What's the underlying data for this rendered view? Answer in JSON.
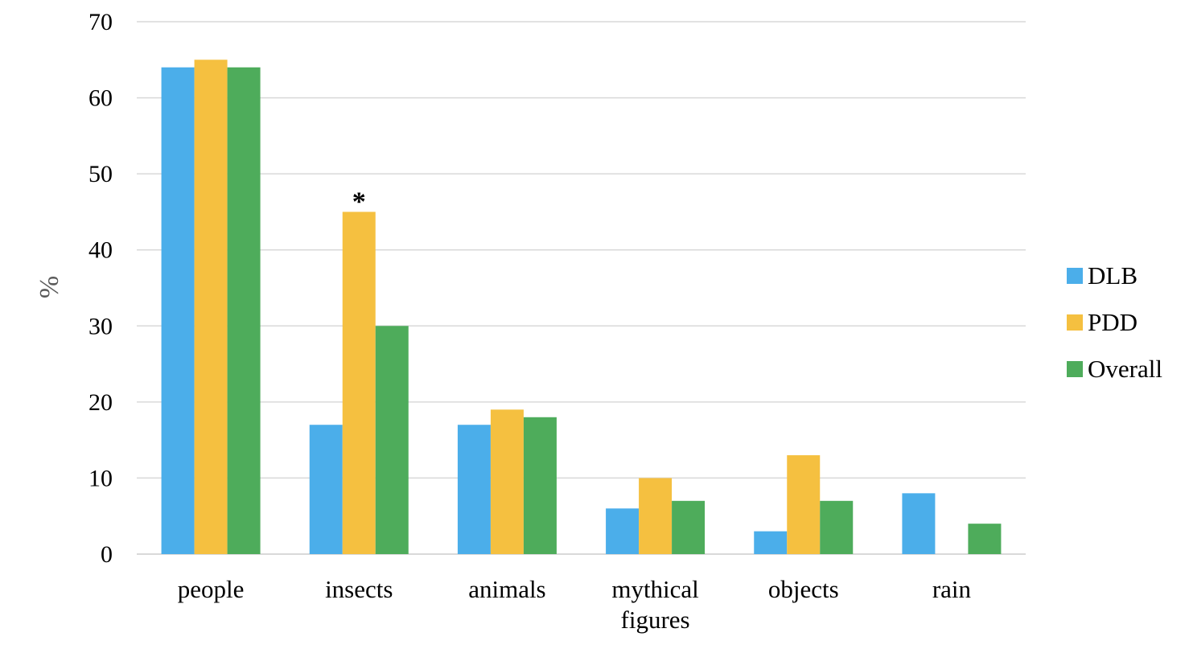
{
  "chart_data": {
    "type": "bar",
    "title": "",
    "xlabel": "",
    "ylabel": "%",
    "ylim": [
      0,
      70
    ],
    "yticks": [
      0,
      10,
      20,
      30,
      40,
      50,
      60,
      70
    ],
    "grid": "horizontal",
    "legend_position": "right",
    "categories": [
      "people",
      "insects",
      "animals",
      "mythical figures",
      "objects",
      "rain"
    ],
    "series": [
      {
        "name": "DLB",
        "color": "#4baeea",
        "values": [
          64,
          17,
          17,
          6,
          3,
          8
        ]
      },
      {
        "name": "PDD",
        "color": "#f5c040",
        "values": [
          65,
          45,
          19,
          10,
          13,
          0
        ]
      },
      {
        "name": "Overall",
        "color": "#4eac5b",
        "values": [
          64,
          30,
          18,
          7,
          7,
          4
        ]
      }
    ],
    "annotations": [
      {
        "text": "*",
        "category": "insects",
        "series": "PDD"
      }
    ]
  }
}
